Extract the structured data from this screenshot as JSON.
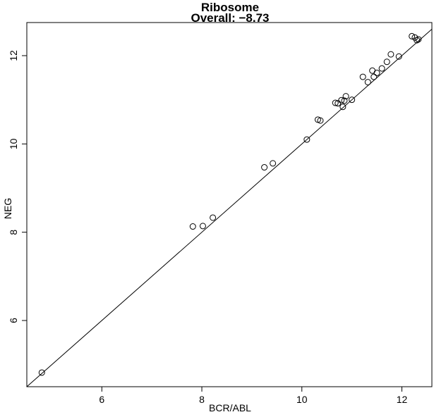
{
  "chart_data": {
    "type": "scatter",
    "title": "Ribosome",
    "subtitle": "Overall: −8.73",
    "xlabel": "BCR/ABL",
    "ylabel": "NEG",
    "xlim": [
      4.5,
      12.6
    ],
    "ylim": [
      4.5,
      12.75
    ],
    "xticks": [
      6,
      8,
      10,
      12
    ],
    "yticks": [
      6,
      8,
      10,
      12
    ],
    "grid": false,
    "reference_line": {
      "slope": 1,
      "intercept": 0
    },
    "point_color": "#000000",
    "line_color": "#000000",
    "points": [
      {
        "x": 4.8,
        "y": 4.82
      },
      {
        "x": 7.82,
        "y": 8.13
      },
      {
        "x": 8.02,
        "y": 8.14
      },
      {
        "x": 8.22,
        "y": 8.33
      },
      {
        "x": 9.25,
        "y": 9.47
      },
      {
        "x": 9.42,
        "y": 9.56
      },
      {
        "x": 10.1,
        "y": 10.1
      },
      {
        "x": 10.32,
        "y": 10.55
      },
      {
        "x": 10.37,
        "y": 10.53
      },
      {
        "x": 10.67,
        "y": 10.93
      },
      {
        "x": 10.72,
        "y": 10.92
      },
      {
        "x": 10.79,
        "y": 10.99
      },
      {
        "x": 10.82,
        "y": 10.84
      },
      {
        "x": 10.85,
        "y": 10.98
      },
      {
        "x": 10.88,
        "y": 11.08
      },
      {
        "x": 11.0,
        "y": 11.0
      },
      {
        "x": 11.22,
        "y": 11.52
      },
      {
        "x": 11.32,
        "y": 11.4
      },
      {
        "x": 11.41,
        "y": 11.66
      },
      {
        "x": 11.44,
        "y": 11.52
      },
      {
        "x": 11.5,
        "y": 11.61
      },
      {
        "x": 11.6,
        "y": 11.71
      },
      {
        "x": 11.7,
        "y": 11.86
      },
      {
        "x": 11.78,
        "y": 12.03
      },
      {
        "x": 11.94,
        "y": 11.98
      },
      {
        "x": 12.2,
        "y": 12.44
      },
      {
        "x": 12.26,
        "y": 12.41
      },
      {
        "x": 12.3,
        "y": 12.35
      },
      {
        "x": 12.33,
        "y": 12.37
      }
    ]
  }
}
